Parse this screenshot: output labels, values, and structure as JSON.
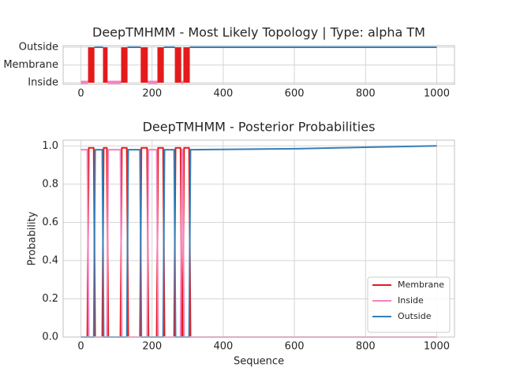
{
  "chart_data": [
    {
      "type": "topology",
      "title": "DeepTMHMM - Most Likely Topology | Type: alpha TM",
      "xlim": [
        -50,
        1050
      ],
      "xticks": [
        0,
        200,
        400,
        600,
        800,
        1000
      ],
      "grid": true,
      "categories": [
        "Inside",
        "Membrane",
        "Outside"
      ],
      "colors": [
        "#f781bf",
        "#e41a1c",
        "#377eb8"
      ],
      "segments": [
        [
          [
            0,
            20
          ],
          [
            75,
            113
          ],
          [
            188,
            215
          ],
          [
            282,
            288
          ]
        ],
        [
          [
            20,
            38
          ],
          [
            62,
            75
          ],
          [
            113,
            131
          ],
          [
            168,
            188
          ],
          [
            215,
            233
          ],
          [
            264,
            282
          ],
          [
            288,
            306
          ]
        ],
        [
          [
            38,
            62
          ],
          [
            131,
            168
          ],
          [
            233,
            264
          ],
          [
            306,
            1000
          ]
        ]
      ]
    },
    {
      "type": "line",
      "title": "DeepTMHMM - Posterior Probabilities",
      "xlabel": "Sequence",
      "ylabel": "Probability",
      "xlim": [
        -50,
        1050
      ],
      "xticks": [
        0,
        200,
        400,
        600,
        800,
        1000
      ],
      "ylim": [
        0,
        1.03
      ],
      "yticks": [
        {
          "value": 0,
          "label": "0.0"
        },
        0.2,
        0.4,
        0.6,
        0.8,
        {
          "value": 1,
          "label": "1.0"
        }
      ],
      "grid": true,
      "legend": "lower right",
      "x": [
        0,
        18,
        22,
        36,
        40,
        60,
        64,
        73,
        77,
        111,
        115,
        129,
        133,
        166,
        170,
        186,
        190,
        213,
        217,
        231,
        235,
        262,
        266,
        280,
        284,
        286,
        290,
        304,
        308,
        600,
        800,
        1000
      ],
      "series": [
        {
          "name": "Membrane",
          "color": "#e41a1c",
          "values": [
            0,
            0,
            0.99,
            0.99,
            0,
            0,
            0.99,
            0.99,
            0,
            0,
            0.99,
            0.99,
            0,
            0,
            0.99,
            0.99,
            0,
            0,
            0.99,
            0.99,
            0,
            0,
            0.99,
            0.99,
            0,
            0,
            0.99,
            0.99,
            0,
            0,
            0,
            0
          ]
        },
        {
          "name": "Inside",
          "color": "#f781bf",
          "values": [
            0.98,
            0.98,
            0,
            0,
            0,
            0,
            0,
            0,
            0.98,
            0.98,
            0,
            0,
            0,
            0,
            0,
            0,
            0.98,
            0.98,
            0,
            0,
            0,
            0,
            0,
            0,
            0.98,
            0.98,
            0,
            0,
            0,
            0,
            0,
            0
          ]
        },
        {
          "name": "Outside",
          "color": "#377eb8",
          "values": [
            0,
            0,
            0,
            0,
            0.98,
            0.98,
            0,
            0,
            0,
            0,
            0,
            0,
            0.98,
            0.98,
            0,
            0,
            0,
            0,
            0,
            0,
            0.98,
            0.98,
            0,
            0,
            0,
            0,
            0,
            0,
            0.98,
            0.985,
            0.993,
            1.0
          ]
        }
      ]
    }
  ]
}
